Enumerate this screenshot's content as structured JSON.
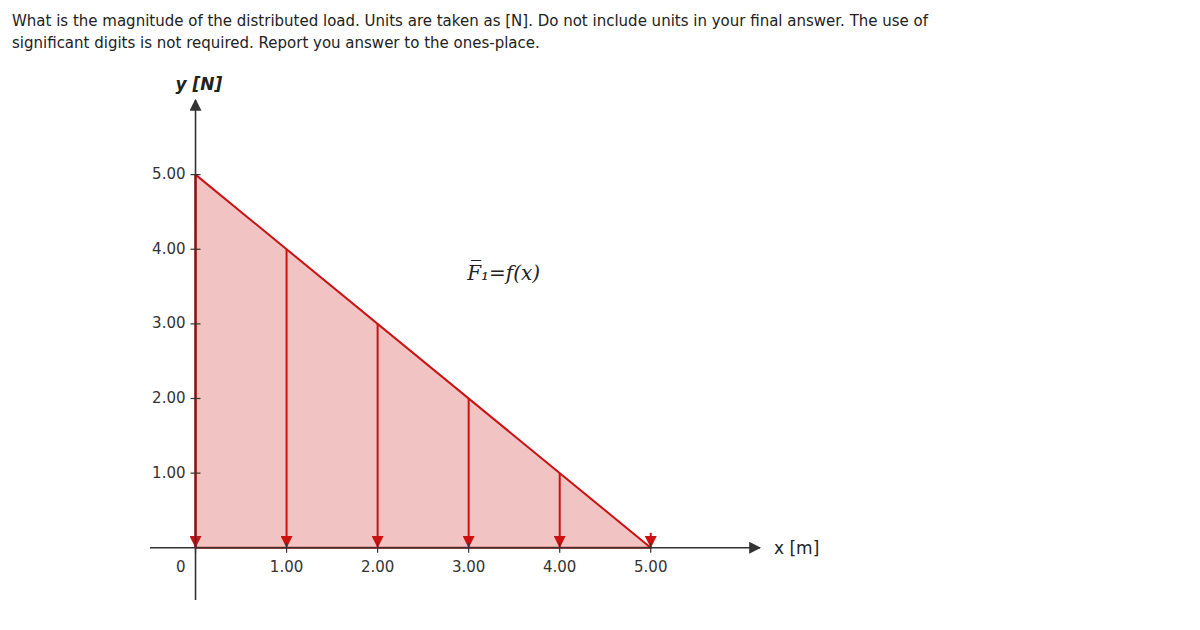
{
  "chart_data": {
    "type": "area",
    "title": "What is the magnitude of the distributed load. Units are taken as [N]. Do not include units in your final answer. The use of",
    "subtitle": "significant digits is not required. Report you answer to the ones-place.",
    "x_label": "x [m]",
    "y_label": "y [N]",
    "annotation": "F̅₁=f(x)",
    "xlim": [
      -0.5,
      6.2
    ],
    "ylim": [
      -0.7,
      6.0
    ],
    "xticks": [
      {
        "value": 0,
        "label": "0"
      },
      {
        "value": 1.0,
        "label": "1.00"
      },
      {
        "value": 2.0,
        "label": "2.00"
      },
      {
        "value": 3.0,
        "label": "3.00"
      },
      {
        "value": 4.0,
        "label": "4.00"
      },
      {
        "value": 5.0,
        "label": "5.00"
      }
    ],
    "yticks": [
      {
        "value": 1.0,
        "label": "1.00"
      },
      {
        "value": 2.0,
        "label": "2.00"
      },
      {
        "value": 3.0,
        "label": "3.00"
      },
      {
        "value": 4.0,
        "label": "4.00"
      },
      {
        "value": 5.0,
        "label": "5.00"
      }
    ],
    "series": [
      {
        "type": "area",
        "color": "#cc1111",
        "x": [
          0.0,
          0.0,
          5.0
        ],
        "values": [
          0.0,
          5.0,
          0.0
        ]
      },
      {
        "type": "arrow",
        "color": "#cc1111",
        "x": [
          0.0,
          1.0,
          2.0,
          3.0,
          4.0,
          5.0
        ],
        "values": [
          5.0,
          4.0,
          3.0,
          2.0,
          1.0,
          0.2
        ]
      }
    ]
  }
}
